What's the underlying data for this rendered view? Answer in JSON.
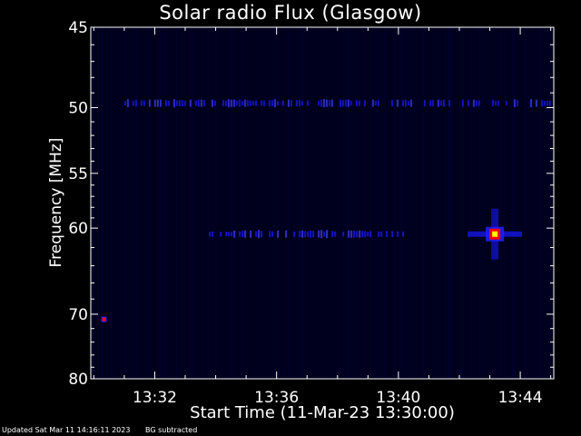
{
  "chart_data": {
    "type": "heatmap",
    "title": "Solar radio Flux (Glasgow)",
    "xlabel": "Start Time (11-Mar-23 13:30:00)",
    "ylabel": "Frequency [MHz]",
    "x_range_minutes_after_1330": [
      -0.1,
      15.1
    ],
    "y_range_MHz": [
      45,
      80
    ],
    "x_ticks": [
      "13:32",
      "13:36",
      "13:40",
      "13:44"
    ],
    "y_ticks": [
      45,
      50,
      55,
      60,
      70,
      80
    ],
    "colormap": [
      "#00001a",
      "#0000ff",
      "#ff0000",
      "#ffff00"
    ],
    "features": [
      {
        "kind": "band",
        "freq_MHz": 49.7,
        "from_min": 1.0,
        "to_min": 15.0,
        "intensity": 0.35
      },
      {
        "kind": "band",
        "freq_MHz": 60.6,
        "from_min": 3.6,
        "to_min": 10.2,
        "intensity": 0.45
      },
      {
        "kind": "burst",
        "time": "13:43:10",
        "freq_MHz": 60.6,
        "intensity": 1.0
      },
      {
        "kind": "spot",
        "time": "13:30:20",
        "freq_MHz": 70.7,
        "intensity": 0.8
      }
    ]
  },
  "footer": {
    "updated": "Updated Sat Mar 11 14:16:11 2023",
    "note": "BG subtracted"
  }
}
